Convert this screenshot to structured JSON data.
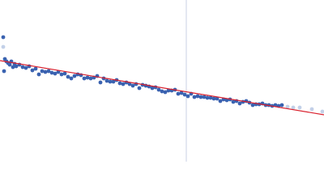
{
  "chart_data": {
    "type": "scatter",
    "xlim": [
      0,
      400
    ],
    "ylim": [
      0,
      200
    ],
    "vline": {
      "x": 230,
      "color": "#c8d2e4"
    },
    "series": [
      {
        "color": "#3a62b0",
        "x": [
          4,
          5,
          6,
          8,
          10,
          12,
          14,
          16,
          18,
          20,
          24,
          28,
          32,
          36,
          40,
          44,
          48,
          52,
          56,
          60,
          64,
          68,
          72,
          76,
          80,
          84,
          88,
          92,
          96,
          100,
          104,
          108,
          112,
          116,
          120,
          124,
          128,
          132,
          136,
          140,
          144,
          148,
          152,
          156,
          160,
          164,
          168,
          172,
          176,
          180,
          184,
          188,
          192,
          196,
          200,
          204,
          208,
          212,
          216,
          220,
          224,
          228,
          232,
          236,
          240,
          244,
          248,
          252,
          256,
          260,
          264,
          268,
          272,
          276,
          280,
          284,
          288,
          292,
          296,
          300,
          304,
          308,
          312,
          316,
          320,
          324,
          328,
          332,
          336,
          340,
          344,
          348
        ],
        "values": [
          154,
          112,
          127,
          124,
          122,
          120,
          124,
          117,
          121,
          118,
          120,
          117,
          116,
          118,
          113,
          115,
          108,
          112,
          111,
          112,
          110,
          109,
          111,
          108,
          109,
          105,
          103,
          106,
          108,
          107,
          103,
          104,
          103,
          104,
          106,
          98,
          103,
          100,
          99,
          99,
          101,
          97,
          96,
          98,
          96,
          94,
          96,
          91,
          95,
          94,
          93,
          91,
          92,
          89,
          87,
          86,
          88,
          88,
          89,
          84,
          85,
          83,
          81,
          84,
          80,
          81,
          80,
          80,
          79,
          79,
          78,
          78,
          75,
          77,
          76,
          77,
          74,
          75,
          72,
          74,
          75,
          73,
          70,
          71,
          71,
          72,
          70,
          70,
          69,
          70,
          69,
          70
        ]
      },
      {
        "color": "#c3d0e8",
        "x": [
          4,
          355,
          362,
          370,
          385,
          398
        ],
        "values": [
          142,
          68,
          67,
          67,
          65,
          62
        ]
      },
      {
        "type": "line",
        "color": "#d9212e",
        "x": [
          0,
          400
        ],
        "values": [
          125,
          58
        ]
      }
    ]
  }
}
